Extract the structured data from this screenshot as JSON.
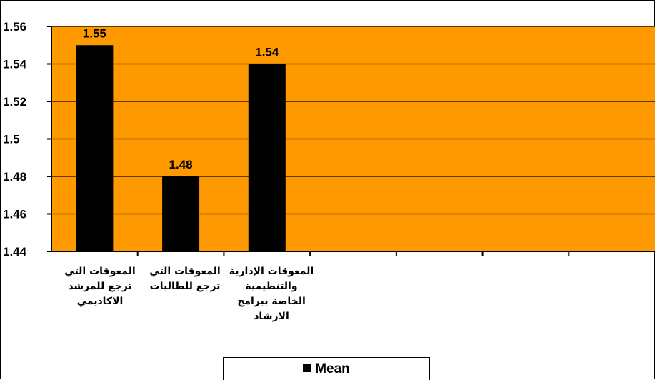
{
  "colors": {
    "plot_background": "#ff9900",
    "bar": "#000000",
    "gridline": "#000000"
  },
  "chart_data": {
    "type": "bar",
    "categories": [
      "المعوقات التي ترجع للمرشد الاكاديمي",
      "المعوقات التي ترجع للطالبات",
      "المعوقات الإدارية والتنظيمية الخاصة ببرامج الارشاد",
      "",
      "",
      "",
      ""
    ],
    "series": [
      {
        "name": "Mean",
        "values": [
          1.55,
          1.48,
          1.54,
          null,
          null,
          null,
          null
        ]
      }
    ],
    "data_labels": [
      "1.55",
      "1.48",
      "1.54"
    ],
    "y_ticks": [
      "1.44",
      "1.46",
      "1.48",
      "1.5",
      "1.52",
      "1.54",
      "1.56"
    ],
    "ylim": [
      1.44,
      1.56
    ],
    "grid": "horizontal",
    "legend": {
      "position": "bottom",
      "entries": [
        "Mean"
      ]
    }
  }
}
